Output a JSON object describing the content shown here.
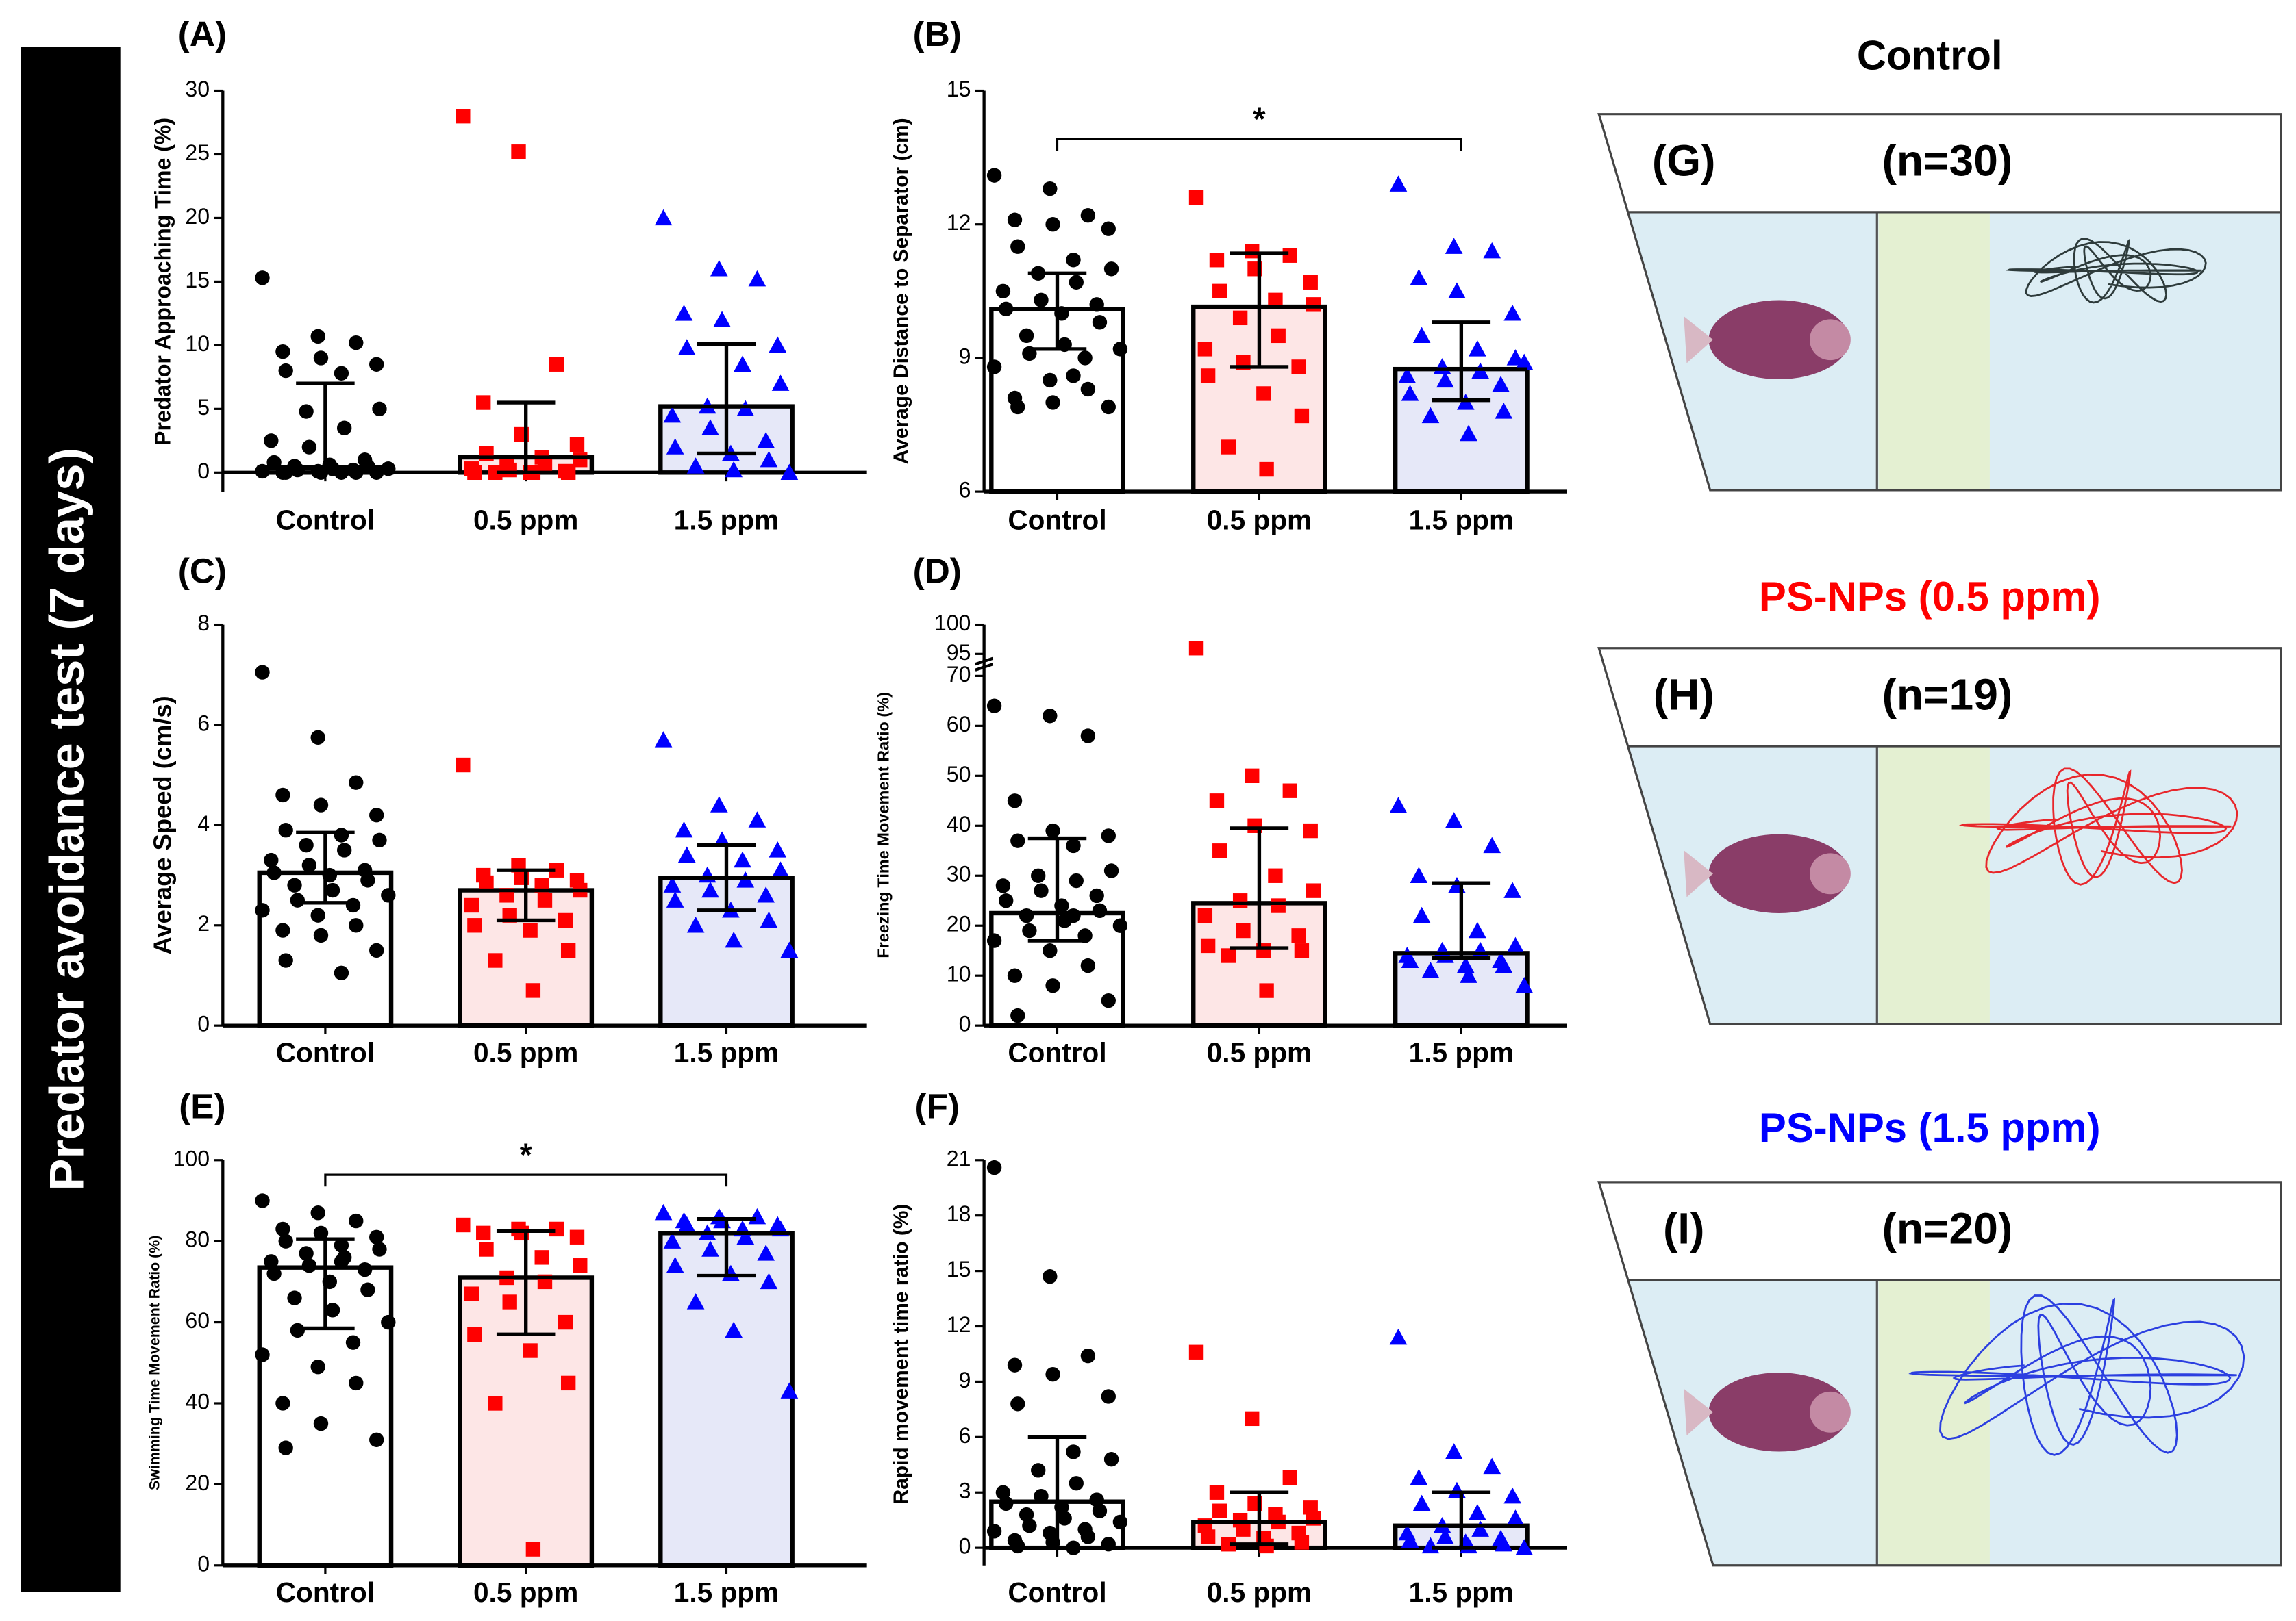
{
  "sidebar_title": "Predator avoidance test (7 days)",
  "chart_data": [
    {
      "type": "bar",
      "panel": "(A)",
      "ylabel": "Predator Approaching Time (%)",
      "categories": [
        "Control",
        "0.5 ppm",
        "1.5 ppm"
      ],
      "bar_colors": [
        "#ffffff",
        "#fde6e6",
        "#e6e8f8"
      ],
      "point_colors": [
        "#000000",
        "#ff0000",
        "#0000ff"
      ],
      "markers": [
        "circle",
        "square",
        "triangle"
      ],
      "ylim": [
        0,
        30
      ],
      "yticks": [
        0,
        5,
        10,
        15,
        20,
        25,
        30
      ],
      "values": [
        0.4,
        1.2,
        5.2
      ],
      "errors": [
        [
          0,
          7
        ],
        [
          0,
          5.5
        ],
        [
          1.5,
          10.1
        ]
      ],
      "points": [
        [
          15.3,
          10.7,
          10.2,
          9.5,
          9,
          8.5,
          8,
          7.8,
          5,
          4.8,
          3.5,
          2.5,
          2,
          1,
          0.8,
          0.6,
          0.5,
          0.5,
          0.3,
          0.3,
          0.2,
          0.2,
          0.1,
          0.1,
          0,
          0,
          0,
          0,
          0,
          0
        ],
        [
          28,
          25.2,
          8.5,
          5.5,
          3,
          2.2,
          1.5,
          1.2,
          1,
          0.5,
          0.5,
          0.3,
          0.2,
          0.1,
          0,
          0,
          0,
          0,
          0
        ],
        [
          20,
          16,
          15.2,
          12.5,
          12,
          10,
          9.8,
          8.5,
          7,
          5.2,
          5,
          4.5,
          3.5,
          2.5,
          2,
          1.5,
          1,
          0.5,
          0.2,
          0
        ]
      ]
    },
    {
      "type": "bar",
      "panel": "(B)",
      "ylabel": "Average Distance to Separator (cm)",
      "categories": [
        "Control",
        "0.5 ppm",
        "1.5 ppm"
      ],
      "bar_colors": [
        "#ffffff",
        "#fde6e6",
        "#e6e8f8"
      ],
      "point_colors": [
        "#000000",
        "#ff0000",
        "#0000ff"
      ],
      "markers": [
        "circle",
        "square",
        "triangle"
      ],
      "ylim": [
        6,
        15
      ],
      "yticks": [
        6,
        9,
        12,
        15
      ],
      "values": [
        10.1,
        10.15,
        8.75
      ],
      "errors": [
        [
          9.2,
          10.9
        ],
        [
          8.8,
          11.35
        ],
        [
          8.05,
          9.8
        ]
      ],
      "significance": {
        "text": "*",
        "pair": [
          0,
          2
        ]
      },
      "points": [
        [
          13.1,
          12.8,
          12.2,
          12.1,
          12,
          11.9,
          11.5,
          11.2,
          11,
          10.9,
          10.7,
          10.5,
          10.3,
          10.2,
          10.1,
          10,
          9.8,
          9.5,
          9.3,
          9.2,
          9.1,
          9,
          8.8,
          8.5,
          8.3,
          8.1,
          8,
          7.9,
          7.9,
          8.6
        ],
        [
          12.6,
          11.4,
          11.3,
          11.2,
          11,
          10.7,
          10.5,
          10.3,
          10.2,
          9.9,
          9.5,
          9.2,
          8.9,
          8.8,
          8.6,
          8.2,
          7.7,
          7,
          6.5
        ],
        [
          12.9,
          11.5,
          11.4,
          10.8,
          10.5,
          10,
          9.5,
          9.2,
          9,
          8.8,
          8.7,
          8.6,
          8.5,
          8.4,
          8.2,
          8,
          7.8,
          7.7,
          7.3,
          8.9
        ]
      ]
    },
    {
      "type": "bar",
      "panel": "(C)",
      "ylabel": "Average Speed (cm/s)",
      "categories": [
        "Control",
        "0.5 ppm",
        "1.5 ppm"
      ],
      "bar_colors": [
        "#ffffff",
        "#fde6e6",
        "#e6e8f8"
      ],
      "point_colors": [
        "#000000",
        "#ff0000",
        "#0000ff"
      ],
      "markers": [
        "circle",
        "square",
        "triangle"
      ],
      "ylim": [
        0,
        8
      ],
      "yticks": [
        0,
        2,
        4,
        6,
        8
      ],
      "values": [
        3.05,
        2.7,
        2.95
      ],
      "errors": [
        [
          2.45,
          3.85
        ],
        [
          2.1,
          3.1
        ],
        [
          2.3,
          3.6
        ]
      ],
      "points": [
        [
          7.05,
          5.75,
          4.85,
          4.6,
          4.4,
          4.2,
          3.9,
          3.8,
          3.7,
          3.6,
          3.5,
          3.3,
          3.2,
          3.1,
          3.05,
          3,
          2.9,
          2.8,
          2.7,
          2.6,
          2.5,
          2.4,
          2.3,
          2.2,
          2,
          1.9,
          1.8,
          1.5,
          1.3,
          1.05
        ],
        [
          5.2,
          3.2,
          3.1,
          3,
          2.95,
          2.9,
          2.85,
          2.8,
          2.7,
          2.6,
          2.5,
          2.4,
          2.2,
          2.1,
          2,
          1.9,
          1.5,
          1.3,
          0.7
        ],
        [
          5.7,
          4.4,
          4.1,
          3.9,
          3.7,
          3.5,
          3.4,
          3.3,
          3.1,
          3,
          2.9,
          2.8,
          2.7,
          2.6,
          2.5,
          2.3,
          2.1,
          2,
          1.7,
          1.5
        ]
      ]
    },
    {
      "type": "bar",
      "panel": "(D)",
      "ylabel": "Freezing Time Movement Ratio (%)",
      "categories": [
        "Control",
        "0.5 ppm",
        "1.5 ppm"
      ],
      "bar_colors": [
        "#ffffff",
        "#fde6e6",
        "#e6e8f8"
      ],
      "point_colors": [
        "#000000",
        "#ff0000",
        "#0000ff"
      ],
      "markers": [
        "circle",
        "square",
        "triangle"
      ],
      "ylim": [
        0,
        100
      ],
      "ybreak": [
        70,
        95
      ],
      "yticks": [
        0,
        10,
        20,
        30,
        40,
        50,
        60,
        70,
        95,
        100
      ],
      "values": [
        22.5,
        24.5,
        14.5
      ],
      "errors": [
        [
          17,
          37.5
        ],
        [
          15.5,
          39.5
        ],
        [
          13.5,
          28.5
        ]
      ],
      "points": [
        [
          64,
          62,
          58,
          45,
          39,
          38,
          37,
          36,
          31,
          30,
          29,
          28,
          27,
          26,
          25,
          24,
          23,
          22,
          21,
          20,
          19,
          18,
          17,
          15,
          12,
          10,
          8,
          5,
          2,
          22
        ],
        [
          96,
          50,
          47,
          45,
          40,
          39,
          35,
          30,
          27,
          25,
          24,
          22,
          19,
          18,
          16,
          15,
          15,
          14,
          7
        ],
        [
          44,
          41,
          36,
          30,
          28,
          27,
          22,
          19,
          16,
          15,
          15,
          14,
          14,
          13,
          13,
          12,
          12,
          11,
          10,
          8
        ]
      ]
    },
    {
      "type": "bar",
      "panel": "(E)",
      "ylabel": "Swimming Time Movement  Ratio (%)",
      "categories": [
        "Control",
        "0.5 ppm",
        "1.5 ppm"
      ],
      "bar_colors": [
        "#ffffff",
        "#fde6e6",
        "#e6e8f8"
      ],
      "point_colors": [
        "#000000",
        "#ff0000",
        "#0000ff"
      ],
      "markers": [
        "circle",
        "square",
        "triangle"
      ],
      "ylim": [
        0,
        100
      ],
      "yticks": [
        0,
        20,
        40,
        60,
        80,
        100
      ],
      "values": [
        73.5,
        71,
        82
      ],
      "errors": [
        [
          58.5,
          80.5
        ],
        [
          57,
          82.5
        ],
        [
          71.5,
          85.5
        ]
      ],
      "significance": {
        "text": "*",
        "pair": [
          0,
          2
        ]
      },
      "points": [
        [
          90,
          87,
          85,
          83,
          82,
          81,
          80,
          79,
          78,
          77,
          76,
          75,
          74,
          73,
          72,
          70,
          68,
          66,
          63,
          60,
          58,
          55,
          52,
          49,
          45,
          40,
          35,
          31,
          29,
          75
        ],
        [
          84,
          83,
          83,
          82,
          82,
          81,
          78,
          76,
          74,
          71,
          70,
          67,
          65,
          60,
          57,
          53,
          45,
          40,
          4
        ],
        [
          87,
          86,
          86,
          85,
          85,
          84,
          84,
          83,
          83,
          82,
          81,
          80,
          78,
          77,
          74,
          72,
          70,
          65,
          58,
          43
        ]
      ]
    },
    {
      "type": "bar",
      "panel": "(F)",
      "ylabel": "Rapid movement time ratio (%)",
      "categories": [
        "Control",
        "0.5 ppm",
        "1.5 ppm"
      ],
      "bar_colors": [
        "#ffffff",
        "#fde6e6",
        "#e6e8f8"
      ],
      "point_colors": [
        "#000000",
        "#ff0000",
        "#0000ff"
      ],
      "markers": [
        "circle",
        "square",
        "triangle"
      ],
      "ylim": [
        0,
        21
      ],
      "yticks": [
        0,
        3,
        6,
        9,
        12,
        15,
        18,
        21
      ],
      "values": [
        2.5,
        1.4,
        1.2
      ],
      "errors": [
        [
          0,
          6
        ],
        [
          0.2,
          3
        ],
        [
          0,
          3
        ]
      ],
      "points": [
        [
          20.6,
          14.7,
          10.4,
          9.9,
          9.4,
          8.2,
          7.8,
          5.2,
          4.8,
          4.2,
          3.5,
          3,
          2.8,
          2.6,
          2.4,
          2.2,
          2,
          1.8,
          1.6,
          1.4,
          1.2,
          1,
          0.9,
          0.8,
          0.6,
          0.4,
          0.3,
          0.2,
          0.1,
          0
        ],
        [
          10.6,
          7,
          3.8,
          3,
          2.4,
          2.2,
          2,
          1.8,
          1.6,
          1.5,
          1.4,
          1.2,
          1,
          0.8,
          0.6,
          0.5,
          0.3,
          0.2,
          0.1
        ],
        [
          11.4,
          5.2,
          4.4,
          3.8,
          3.1,
          2.8,
          2.4,
          1.9,
          1.6,
          1.2,
          1,
          0.8,
          0.6,
          0.5,
          0.4,
          0.3,
          0.2,
          0.1,
          0.1,
          0
        ]
      ]
    }
  ],
  "diagrams": [
    {
      "title": "Control",
      "title_color": "#000000",
      "label": "(G)",
      "n_label": "(n=30)",
      "trace_color": "#2e3b3b"
    },
    {
      "title": "PS-NPs (0.5 ppm)",
      "title_color": "#ff0000",
      "label": "(H)",
      "n_label": "(n=19)",
      "trace_color": "#e8262b"
    },
    {
      "title": "PS-NPs (1.5 ppm)",
      "title_color": "#0000ff",
      "label": "(I)",
      "n_label": "(n=20)",
      "trace_color": "#2b3fe0"
    }
  ]
}
